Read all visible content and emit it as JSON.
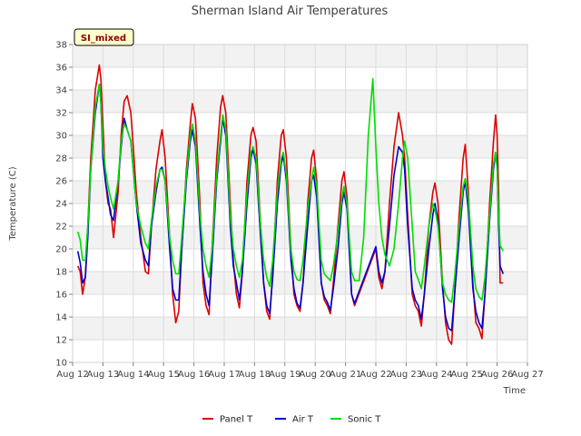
{
  "chart_data": {
    "type": "line",
    "title": "Sherman Island Air Temperatures",
    "xlabel": "Time",
    "ylabel": "Temperature (C)",
    "annotation": "SI_mixed",
    "xlim": [
      12,
      27
    ],
    "ylim": [
      10,
      38
    ],
    "x_ticks": [
      12,
      13,
      14,
      15,
      16,
      17,
      18,
      19,
      20,
      21,
      22,
      23,
      24,
      25,
      26,
      27
    ],
    "x_tick_labels": [
      "Aug 12",
      "Aug 13",
      "Aug 14",
      "Aug 15",
      "Aug 16",
      "Aug 17",
      "Aug 18",
      "Aug 19",
      "Aug 20",
      "Aug 21",
      "Aug 22",
      "Aug 23",
      "Aug 24",
      "Aug 25",
      "Aug 26",
      "Aug 27"
    ],
    "y_ticks": [
      10,
      12,
      14,
      16,
      18,
      20,
      22,
      24,
      26,
      28,
      30,
      32,
      34,
      36,
      38
    ],
    "y_tick_labels": [
      "10",
      "12",
      "14",
      "16",
      "18",
      "20",
      "22",
      "24",
      "26",
      "28",
      "30",
      "32",
      "34",
      "36",
      "38"
    ],
    "grid": true,
    "legend_position": "bottom-center",
    "series": [
      {
        "name": "Panel T",
        "color": "#dd0000",
        "x": [
          12.17,
          12.25,
          12.33,
          12.42,
          12.5,
          12.6,
          12.75,
          12.88,
          12.93,
          13.0,
          13.08,
          13.17,
          13.25,
          13.35,
          13.5,
          13.6,
          13.7,
          13.8,
          13.92,
          14.0,
          14.1,
          14.25,
          14.4,
          14.5,
          14.6,
          14.75,
          14.88,
          14.95,
          15.05,
          15.2,
          15.3,
          15.4,
          15.5,
          15.6,
          15.75,
          15.88,
          15.95,
          16.05,
          16.2,
          16.3,
          16.4,
          16.5,
          16.6,
          16.75,
          16.88,
          16.95,
          17.05,
          17.2,
          17.3,
          17.4,
          17.5,
          17.6,
          17.75,
          17.88,
          17.95,
          18.05,
          18.2,
          18.3,
          18.4,
          18.5,
          18.6,
          18.75,
          18.88,
          18.95,
          19.05,
          19.2,
          19.3,
          19.4,
          19.5,
          19.6,
          19.75,
          19.88,
          19.95,
          20.05,
          20.2,
          20.3,
          20.4,
          20.5,
          20.6,
          20.75,
          20.88,
          20.95,
          21.05,
          21.2,
          21.3,
          22.0,
          22.1,
          22.2,
          22.3,
          22.45,
          22.6,
          22.75,
          22.88,
          22.95,
          23.05,
          23.2,
          23.3,
          23.4,
          23.5,
          23.6,
          23.75,
          23.88,
          23.95,
          24.05,
          24.2,
          24.3,
          24.4,
          24.5,
          24.6,
          24.75,
          24.88,
          24.95,
          25.05,
          25.2,
          25.3,
          25.4,
          25.5,
          25.6,
          25.75,
          25.88,
          25.95,
          26.0,
          26.05,
          26.1,
          26.2
        ],
        "y": [
          18.5,
          18.0,
          16.0,
          17.5,
          22.0,
          28.0,
          34.0,
          36.2,
          35.0,
          31.0,
          26.0,
          24.0,
          23.5,
          21.0,
          25.0,
          30.0,
          33.0,
          33.5,
          32.0,
          29.0,
          25.0,
          21.0,
          18.0,
          17.8,
          22.0,
          27.0,
          29.5,
          30.5,
          28.0,
          21.0,
          16.0,
          13.5,
          14.5,
          20.0,
          27.0,
          31.0,
          32.8,
          31.5,
          24.0,
          17.0,
          15.0,
          14.2,
          20.0,
          28.0,
          32.5,
          33.5,
          32.0,
          24.0,
          19.0,
          16.0,
          14.8,
          18.0,
          26.0,
          30.0,
          30.7,
          29.5,
          22.0,
          17.0,
          14.5,
          13.8,
          18.0,
          26.0,
          30.0,
          30.5,
          28.0,
          20.0,
          16.0,
          15.0,
          14.5,
          17.0,
          24.0,
          28.0,
          28.7,
          26.0,
          17.0,
          15.5,
          15.0,
          14.3,
          17.0,
          22.0,
          26.0,
          26.8,
          24.5,
          16.0,
          15.0,
          20.0,
          17.5,
          16.5,
          18.0,
          24.0,
          29.0,
          32.0,
          30.0,
          28.0,
          23.0,
          16.0,
          15.0,
          14.5,
          13.2,
          16.0,
          22.0,
          25.0,
          25.8,
          24.0,
          17.0,
          13.5,
          12.0,
          11.6,
          16.0,
          23.0,
          28.0,
          29.2,
          25.0,
          17.0,
          13.5,
          13.0,
          12.1,
          16.0,
          24.0,
          29.5,
          31.8,
          30.0,
          25.0,
          17.0,
          17.0
        ]
      },
      {
        "name": "Air T",
        "color": "#0000cc",
        "x": [
          12.17,
          12.25,
          12.33,
          12.42,
          12.5,
          12.6,
          12.75,
          12.88,
          12.93,
          13.0,
          13.08,
          13.17,
          13.25,
          13.35,
          13.5,
          13.6,
          13.7,
          13.8,
          13.92,
          14.0,
          14.1,
          14.25,
          14.4,
          14.5,
          14.6,
          14.75,
          14.88,
          14.95,
          15.05,
          15.2,
          15.3,
          15.4,
          15.5,
          15.6,
          15.75,
          15.88,
          15.95,
          16.05,
          16.2,
          16.3,
          16.4,
          16.5,
          16.6,
          16.75,
          16.88,
          16.95,
          17.05,
          17.2,
          17.3,
          17.4,
          17.5,
          17.6,
          17.75,
          17.88,
          17.95,
          18.05,
          18.2,
          18.3,
          18.4,
          18.5,
          18.6,
          18.75,
          18.88,
          18.95,
          19.05,
          19.2,
          19.3,
          19.4,
          19.5,
          19.6,
          19.75,
          19.88,
          19.95,
          20.05,
          20.2,
          20.3,
          20.4,
          20.5,
          20.6,
          20.75,
          20.88,
          20.95,
          21.05,
          21.2,
          21.3,
          22.0,
          22.1,
          22.2,
          22.3,
          22.45,
          22.6,
          22.75,
          22.88,
          22.95,
          23.05,
          23.2,
          23.3,
          23.4,
          23.5,
          23.6,
          23.75,
          23.88,
          23.95,
          24.05,
          24.2,
          24.3,
          24.4,
          24.5,
          24.6,
          24.75,
          24.88,
          24.95,
          25.05,
          25.2,
          25.3,
          25.4,
          25.5,
          25.6,
          25.75,
          25.88,
          25.95,
          26.0,
          26.05,
          26.1,
          26.2
        ],
        "y": [
          19.8,
          18.8,
          17.0,
          17.5,
          21.0,
          27.0,
          32.0,
          34.5,
          33.0,
          28.0,
          26.0,
          24.5,
          23.0,
          22.5,
          26.0,
          29.0,
          31.5,
          30.5,
          29.5,
          27.0,
          24.0,
          20.5,
          19.0,
          18.5,
          22.0,
          25.0,
          27.0,
          27.2,
          26.0,
          20.0,
          16.5,
          15.5,
          15.5,
          20.0,
          26.0,
          29.5,
          30.5,
          29.0,
          22.0,
          18.0,
          16.0,
          15.0,
          19.0,
          26.0,
          29.5,
          31.5,
          30.0,
          22.0,
          18.5,
          17.0,
          15.5,
          18.0,
          24.0,
          28.0,
          28.8,
          27.5,
          21.0,
          17.0,
          15.0,
          14.3,
          17.5,
          24.0,
          27.5,
          28.2,
          26.0,
          19.0,
          16.5,
          15.2,
          14.8,
          17.0,
          22.0,
          26.0,
          26.5,
          24.5,
          17.0,
          15.8,
          15.3,
          14.6,
          16.5,
          20.0,
          24.0,
          25.0,
          23.5,
          16.0,
          15.2,
          20.2,
          18.0,
          17.0,
          18.0,
          22.0,
          26.5,
          29.0,
          28.5,
          27.0,
          22.0,
          16.5,
          15.5,
          15.0,
          13.8,
          16.0,
          20.0,
          23.0,
          24.0,
          22.5,
          16.5,
          14.0,
          13.0,
          12.8,
          16.0,
          21.0,
          25.0,
          26.0,
          23.5,
          16.5,
          14.5,
          13.5,
          13.0,
          16.0,
          22.5,
          27.0,
          28.5,
          27.5,
          22.0,
          18.5,
          17.8
        ]
      },
      {
        "name": "Sonic T",
        "color": "#00dd00",
        "x": [
          12.17,
          12.25,
          12.33,
          12.42,
          12.5,
          12.6,
          12.75,
          12.88,
          12.93,
          13.0,
          13.08,
          13.17,
          13.25,
          13.35,
          13.5,
          13.6,
          13.7,
          13.8,
          13.92,
          14.0,
          14.1,
          14.25,
          14.4,
          14.5,
          14.6,
          14.75,
          14.88,
          14.95,
          15.05,
          15.2,
          15.3,
          15.4,
          15.5,
          15.6,
          15.75,
          15.88,
          15.95,
          16.05,
          16.2,
          16.3,
          16.4,
          16.5,
          16.6,
          16.75,
          16.88,
          16.95,
          17.05,
          17.2,
          17.3,
          17.4,
          17.5,
          17.6,
          17.75,
          17.88,
          17.95,
          18.05,
          18.2,
          18.3,
          18.4,
          18.5,
          18.6,
          18.75,
          18.88,
          18.95,
          19.05,
          19.2,
          19.3,
          19.4,
          19.5,
          19.6,
          19.75,
          19.88,
          19.95,
          20.05,
          20.2,
          20.3,
          20.4,
          20.5,
          20.6,
          20.75,
          20.88,
          20.95,
          21.05,
          21.2,
          21.3,
          21.45,
          21.6,
          21.75,
          21.9,
          22.0,
          22.1,
          22.2,
          22.3,
          22.45,
          22.6,
          22.75,
          22.88,
          22.95,
          23.05,
          23.2,
          23.3,
          23.4,
          23.5,
          23.6,
          23.75,
          23.88,
          23.95,
          24.05,
          24.2,
          24.3,
          24.4,
          24.5,
          24.6,
          24.75,
          24.88,
          24.95,
          25.05,
          25.2,
          25.3,
          25.4,
          25.5,
          25.6,
          25.75,
          25.88,
          25.95,
          26.0,
          26.05,
          26.1,
          26.2
        ],
        "y": [
          21.5,
          20.8,
          19.0,
          19.0,
          22.0,
          27.0,
          32.5,
          34.5,
          33.0,
          29.0,
          27.0,
          25.5,
          24.5,
          23.5,
          26.0,
          29.5,
          31.0,
          30.5,
          29.5,
          27.0,
          24.0,
          22.0,
          20.5,
          20.0,
          22.5,
          25.5,
          27.0,
          27.0,
          26.0,
          21.0,
          19.0,
          17.8,
          17.8,
          21.0,
          26.5,
          30.0,
          31.0,
          29.5,
          23.0,
          20.0,
          18.5,
          17.5,
          20.0,
          26.5,
          30.0,
          31.8,
          30.5,
          23.0,
          20.0,
          18.5,
          17.5,
          19.0,
          25.0,
          28.5,
          29.0,
          28.0,
          22.0,
          19.0,
          17.5,
          16.7,
          19.0,
          25.0,
          28.0,
          28.5,
          26.5,
          20.0,
          18.0,
          17.3,
          17.2,
          19.0,
          23.5,
          26.0,
          27.2,
          25.5,
          19.0,
          17.8,
          17.5,
          17.2,
          18.5,
          21.5,
          24.5,
          25.5,
          24.0,
          18.0,
          17.2,
          17.2,
          21.0,
          30.0,
          35.0,
          29.0,
          24.0,
          21.0,
          19.5,
          18.5,
          20.0,
          24.0,
          28.0,
          29.5,
          28.0,
          22.0,
          18.0,
          17.3,
          16.5,
          18.5,
          22.0,
          24.0,
          23.5,
          22.0,
          17.0,
          16.0,
          15.5,
          15.3,
          17.5,
          22.0,
          25.5,
          26.2,
          24.5,
          18.5,
          16.5,
          15.8,
          15.5,
          17.5,
          23.0,
          27.5,
          28.5,
          27.0,
          23.0,
          20.3,
          19.8
        ]
      }
    ]
  }
}
